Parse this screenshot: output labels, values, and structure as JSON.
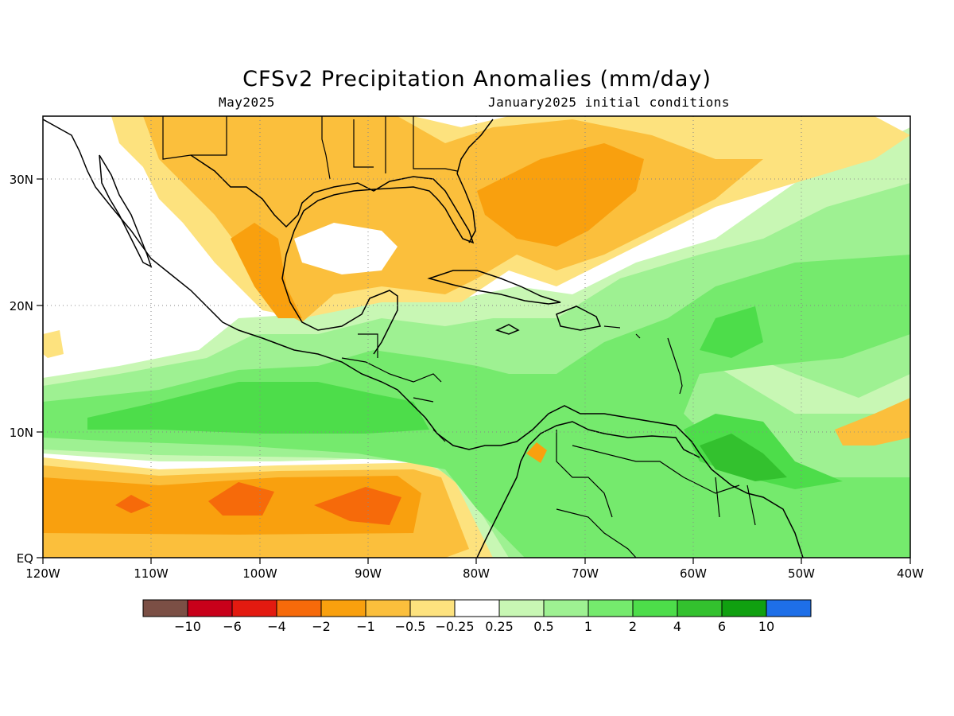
{
  "title": "CFSv2 Precipitation Anomalies (mm/day)",
  "subtitle_left": "May2025",
  "subtitle_right": "January2025 initial conditions",
  "axes": {
    "x_ticks": [
      "120W",
      "110W",
      "100W",
      "90W",
      "80W",
      "70W",
      "60W",
      "50W",
      "40W"
    ],
    "y_ticks": [
      "30N",
      "20N",
      "10N",
      "EQ"
    ],
    "grid": "dotted"
  },
  "colorbar": {
    "colors": [
      "#7b4f45",
      "#c8001a",
      "#e31a10",
      "#f66a0a",
      "#f9a00e",
      "#fbbf3c",
      "#fde27e",
      "#ffffff",
      "#c8f7b4",
      "#9ef192",
      "#75ea6d",
      "#4ddd4a",
      "#33c12e",
      "#10a010",
      "#1e6fe8"
    ],
    "labels": [
      "−10",
      "−6",
      "−4",
      "−2",
      "−1",
      "−0.5",
      "−0.25",
      "0.25",
      "0.5",
      "1",
      "2",
      "4",
      "6",
      "10"
    ]
  }
}
